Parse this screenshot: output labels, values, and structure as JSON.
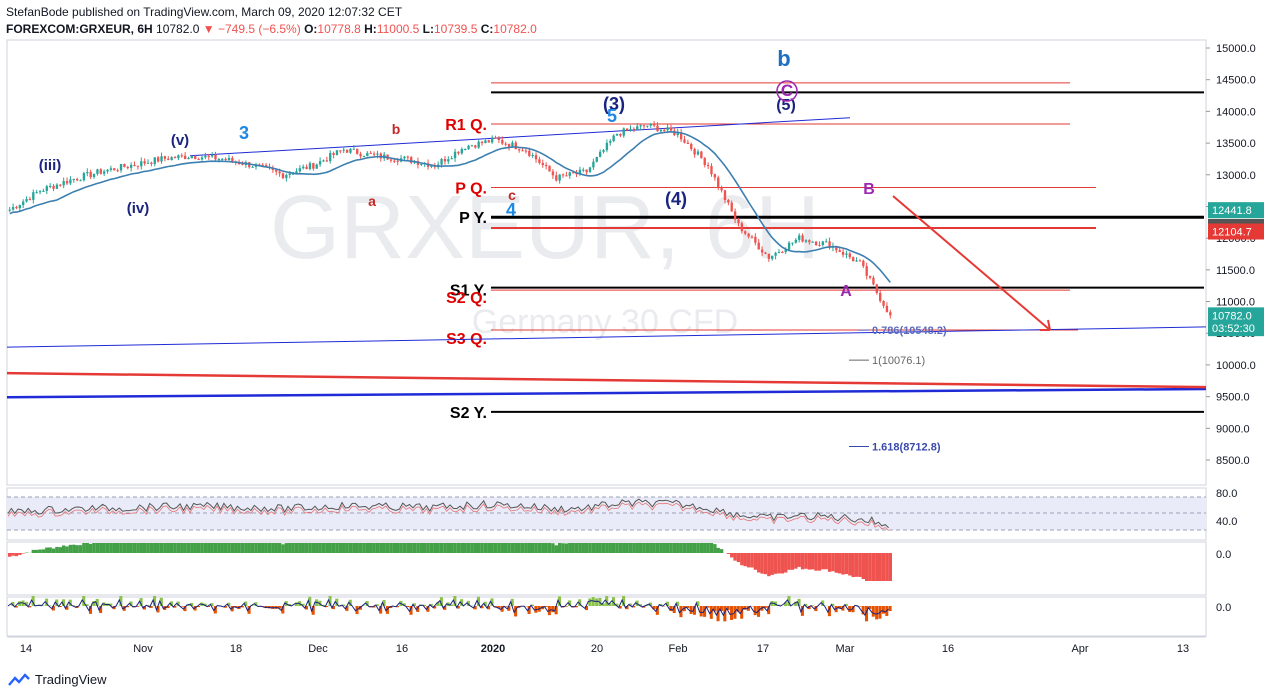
{
  "header": {
    "publisher_line": "StefanBode published on TradingView.com, March 09, 2020 12:07:32 CET",
    "symbol_line": "FOREXCOM:GRXEUR, 6H",
    "last": "10782.0",
    "change": "−749.5 (−6.5%)",
    "open": "10778.8",
    "high": "11000.5",
    "low": "10739.5",
    "close": "10782.0"
  },
  "watermark": {
    "symbol": "GRXEUR, 6H",
    "name": "Germany 30 CFD"
  },
  "footer": {
    "brand": "TradingView"
  },
  "colors": {
    "up": "#26a69a",
    "down": "#ef5350",
    "ma": "#3d7fb0",
    "red_line": "#e53935",
    "black_line": "#000000",
    "blue_line": "#1e2bd6",
    "arrow": "#e53935"
  },
  "chart_data": {
    "type": "line",
    "title": "FOREXCOM:GRXEUR, 6H",
    "xlabel": "",
    "ylabel": "",
    "ylim": [
      8000,
      15200
    ],
    "x_ticks": [
      "14",
      "Nov",
      "18",
      "Dec",
      "16",
      "2020",
      "20",
      "Feb",
      "17",
      "Mar",
      "16",
      "Apr",
      "13"
    ],
    "y_ticks": [
      "15000.0",
      "14500.0",
      "14000.0",
      "13500.0",
      "13000.0",
      "12500.0",
      "12000.0",
      "11500.0",
      "11000.0",
      "10500.0",
      "10000.0",
      "9500.0",
      "9000.0",
      "8500.0"
    ],
    "price_path": [
      [
        "14 Oct",
        12450
      ],
      [
        "21 Oct",
        12750
      ],
      [
        "28 Oct",
        12920
      ],
      [
        "Nov",
        13050
      ],
      [
        "4 Nov",
        13150
      ],
      [
        "11 Nov",
        13250
      ],
      [
        "18 Nov",
        13300
      ],
      [
        "25 Nov",
        13250
      ],
      [
        "Dec",
        13150
      ],
      [
        "3 Dec",
        13000
      ],
      [
        "9 Dec",
        13150
      ],
      [
        "16 Dec",
        13400
      ],
      [
        "23 Dec",
        13300
      ],
      [
        "2020",
        13250
      ],
      [
        "6 Jan",
        13150
      ],
      [
        "13 Jan",
        13450
      ],
      [
        "20 Jan",
        13550
      ],
      [
        "27 Jan",
        13400
      ],
      [
        "31 Jan",
        12950
      ],
      [
        "Feb",
        13050
      ],
      [
        "10 Feb",
        13650
      ],
      [
        "17 Feb",
        13780
      ],
      [
        "21 Feb",
        13650
      ],
      [
        "24 Feb",
        13150
      ],
      [
        "27 Feb",
        12200
      ],
      [
        "Mar",
        11700
      ],
      [
        "3 Mar",
        12000
      ],
      [
        "5 Mar",
        11900
      ],
      [
        "6 Mar",
        11600
      ],
      [
        "9 Mar",
        10782
      ]
    ],
    "horizontal_levels": [
      {
        "label": "R1 Q.",
        "value": 13800,
        "color": "red"
      },
      {
        "label": "P Q.",
        "value": 12800,
        "color": "red"
      },
      {
        "label": "P Y.",
        "value": 12330,
        "color": "black"
      },
      {
        "label": "S1 Y.",
        "value": 11220,
        "color": "black"
      },
      {
        "label": "S2 Q.",
        "value": 11180,
        "color": "red"
      },
      {
        "label": "S3 Q.",
        "value": 10550,
        "color": "red"
      },
      {
        "label": "S2 Y.",
        "value": 9260,
        "color": "black"
      }
    ],
    "extra_levels": [
      14450,
      14300,
      12160
    ],
    "fib_labels": [
      {
        "label": "0.786(10548.2)",
        "value": 10548.2
      },
      {
        "label": "1(10076.1)",
        "value": 10076.1
      },
      {
        "label": "1.618(8712.8)",
        "value": 8712.8
      }
    ],
    "price_labels": [
      {
        "text": "12441.8",
        "value": 12441.8,
        "color": "#26a69a"
      },
      {
        "text": "12177.2",
        "value": 12177.2,
        "color": "#555555"
      },
      {
        "text": "12104.7",
        "value": 12104.7,
        "color": "#e53935"
      },
      {
        "text": "10782.0",
        "value": 10782.0,
        "color": "#26a69a"
      },
      {
        "text": "03:52:30",
        "value": 10580,
        "color": "#26a69a"
      }
    ],
    "wave_labels": [
      {
        "text": "(iii)",
        "color": "#1a237e"
      },
      {
        "text": "(iv)",
        "color": "#1a237e"
      },
      {
        "text": "(v)",
        "color": "#1a237e"
      },
      {
        "text": "3",
        "color": "#1e88e5"
      },
      {
        "text": "a",
        "color": "#c62828"
      },
      {
        "text": "b",
        "color": "#c62828"
      },
      {
        "text": "c",
        "color": "#c62828"
      },
      {
        "text": "4",
        "color": "#1e88e5"
      },
      {
        "text": "(3)",
        "color": "#1a237e"
      },
      {
        "text": "5",
        "color": "#1e88e5"
      },
      {
        "text": "(4)",
        "color": "#1a237e"
      },
      {
        "text": "(5)",
        "color": "#1a237e"
      },
      {
        "text": "b",
        "color": "#1e6fc4"
      },
      {
        "text": "C",
        "color": "#9c27b0"
      },
      {
        "text": "B",
        "color": "#9c27b0"
      },
      {
        "text": "A",
        "color": "#9c27b0"
      }
    ],
    "rsi": {
      "ticks": [
        "80.0",
        "40.0"
      ]
    },
    "hist1": {
      "ticks": [
        "0.0"
      ]
    },
    "hist2": {
      "ticks": [
        "0.0"
      ]
    }
  }
}
